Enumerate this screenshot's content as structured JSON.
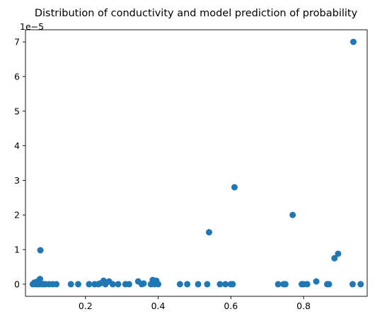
{
  "chart_data": {
    "type": "scatter",
    "title": "Distribution of conductivity and model prediction of probability",
    "xlabel": "",
    "ylabel": "",
    "y_offset_label": "1e−5",
    "xlim": [
      0.035,
      0.975
    ],
    "ylim": [
      -0.35,
      7.35
    ],
    "y_scale_factor": 1e-05,
    "grid": false,
    "x_ticks": [
      0.2,
      0.4,
      0.6,
      0.8
    ],
    "x_tick_labels": [
      "0.2",
      "0.4",
      "0.6",
      "0.8"
    ],
    "y_ticks": [
      0,
      1,
      2,
      3,
      4,
      5,
      6,
      7
    ],
    "y_tick_labels": [
      "0",
      "1",
      "2",
      "3",
      "4",
      "5",
      "6",
      "7"
    ],
    "marker_color": "#1f77b4",
    "points": [
      {
        "x": 0.055,
        "y": 0.0
      },
      {
        "x": 0.06,
        "y": 0.05
      },
      {
        "x": 0.063,
        "y": 0.0
      },
      {
        "x": 0.068,
        "y": 0.08
      },
      {
        "x": 0.07,
        "y": 0.0
      },
      {
        "x": 0.072,
        "y": 0.0
      },
      {
        "x": 0.075,
        "y": 0.15
      },
      {
        "x": 0.076,
        "y": 0.98
      },
      {
        "x": 0.08,
        "y": 0.0
      },
      {
        "x": 0.085,
        "y": 0.0
      },
      {
        "x": 0.09,
        "y": 0.0
      },
      {
        "x": 0.1,
        "y": 0.0
      },
      {
        "x": 0.11,
        "y": 0.0
      },
      {
        "x": 0.12,
        "y": 0.0
      },
      {
        "x": 0.16,
        "y": 0.0
      },
      {
        "x": 0.18,
        "y": 0.0
      },
      {
        "x": 0.21,
        "y": 0.0
      },
      {
        "x": 0.225,
        "y": 0.0
      },
      {
        "x": 0.235,
        "y": 0.0
      },
      {
        "x": 0.24,
        "y": 0.02
      },
      {
        "x": 0.25,
        "y": 0.1
      },
      {
        "x": 0.255,
        "y": 0.0
      },
      {
        "x": 0.265,
        "y": 0.08
      },
      {
        "x": 0.275,
        "y": 0.0
      },
      {
        "x": 0.29,
        "y": 0.0
      },
      {
        "x": 0.31,
        "y": 0.0
      },
      {
        "x": 0.32,
        "y": 0.0
      },
      {
        "x": 0.345,
        "y": 0.08
      },
      {
        "x": 0.355,
        "y": 0.0
      },
      {
        "x": 0.36,
        "y": 0.02
      },
      {
        "x": 0.38,
        "y": 0.0
      },
      {
        "x": 0.385,
        "y": 0.12
      },
      {
        "x": 0.39,
        "y": 0.0
      },
      {
        "x": 0.395,
        "y": 0.1
      },
      {
        "x": 0.4,
        "y": 0.0
      },
      {
        "x": 0.46,
        "y": 0.0
      },
      {
        "x": 0.48,
        "y": 0.0
      },
      {
        "x": 0.51,
        "y": 0.0
      },
      {
        "x": 0.535,
        "y": 0.0
      },
      {
        "x": 0.54,
        "y": 1.5
      },
      {
        "x": 0.57,
        "y": 0.0
      },
      {
        "x": 0.585,
        "y": 0.0
      },
      {
        "x": 0.6,
        "y": 0.0
      },
      {
        "x": 0.605,
        "y": 0.0
      },
      {
        "x": 0.61,
        "y": 2.8
      },
      {
        "x": 0.73,
        "y": 0.0
      },
      {
        "x": 0.745,
        "y": 0.0
      },
      {
        "x": 0.75,
        "y": 0.0
      },
      {
        "x": 0.77,
        "y": 2.0
      },
      {
        "x": 0.795,
        "y": 0.0
      },
      {
        "x": 0.8,
        "y": 0.0
      },
      {
        "x": 0.81,
        "y": 0.0
      },
      {
        "x": 0.835,
        "y": 0.08
      },
      {
        "x": 0.865,
        "y": 0.0
      },
      {
        "x": 0.87,
        "y": 0.0
      },
      {
        "x": 0.885,
        "y": 0.75
      },
      {
        "x": 0.895,
        "y": 0.88
      },
      {
        "x": 0.935,
        "y": 0.0
      },
      {
        "x": 0.937,
        "y": 7.0
      },
      {
        "x": 0.957,
        "y": 0.0
      }
    ]
  }
}
